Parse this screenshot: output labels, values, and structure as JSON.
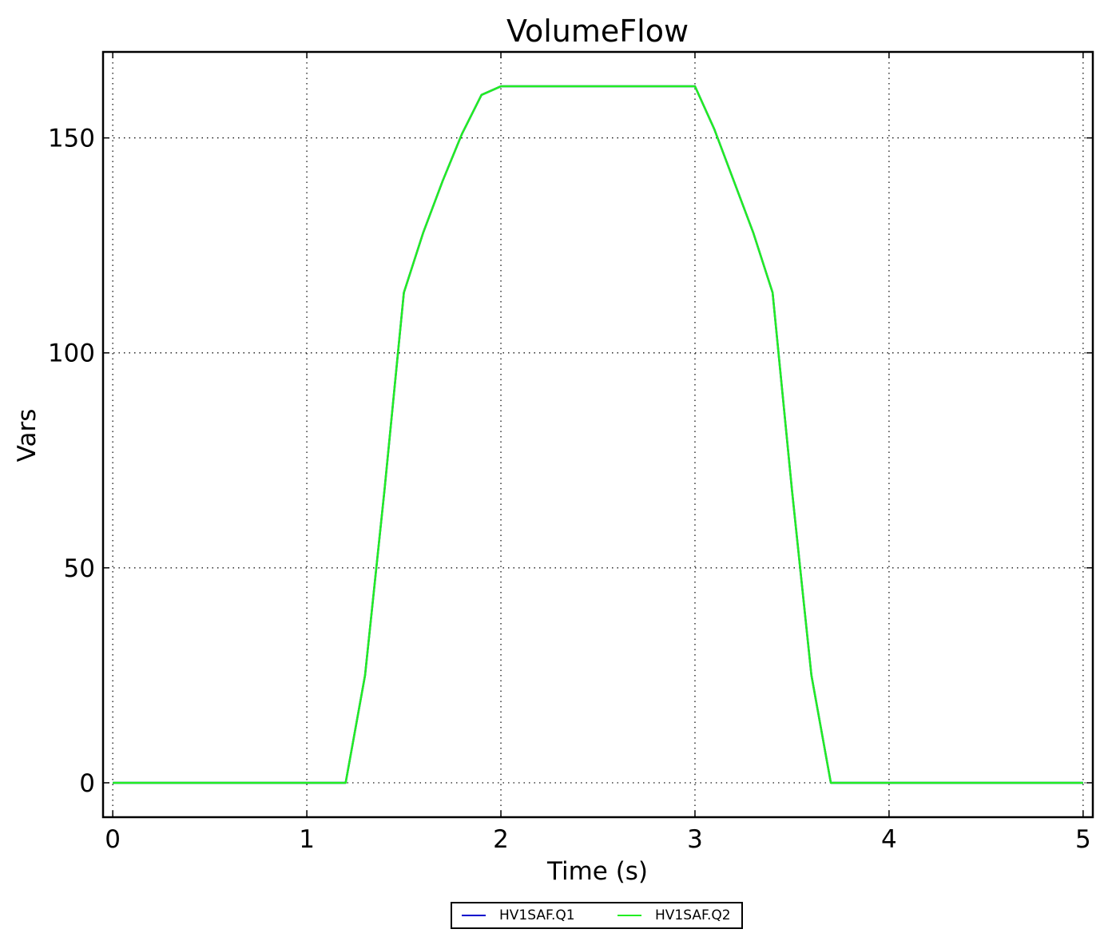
{
  "chart_data": {
    "type": "line",
    "title": "VolumeFlow",
    "xlabel": "Time (s)",
    "ylabel": "Vars",
    "xlim": [
      -0.05,
      5.05
    ],
    "ylim": [
      -8,
      170
    ],
    "xticks": [
      0,
      1,
      2,
      3,
      4,
      5
    ],
    "xtick_labels": [
      "0",
      "1",
      "2",
      "3",
      "4",
      "5"
    ],
    "yticks": [
      0,
      50,
      100,
      150
    ],
    "ytick_labels": [
      "0",
      "50",
      "100",
      "150"
    ],
    "grid": true,
    "legend_position": "bottom-center",
    "series": [
      {
        "name": "HV1SAF.Q1",
        "color": "#0000cc",
        "x": [
          0,
          1.2,
          1.3,
          1.4,
          1.5,
          1.6,
          1.7,
          1.8,
          1.9,
          2.0,
          3.0,
          3.1,
          3.2,
          3.3,
          3.4,
          3.5,
          3.6,
          3.7,
          3.8,
          5.0
        ],
        "y": [
          0,
          0,
          25,
          68,
          114,
          128,
          140,
          151,
          160,
          162,
          162,
          152,
          140,
          128,
          114,
          68,
          25,
          0,
          0,
          0
        ]
      },
      {
        "name": "HV1SAF.Q2",
        "color": "#22ee22",
        "x": [
          0,
          1.2,
          1.3,
          1.4,
          1.5,
          1.6,
          1.7,
          1.8,
          1.9,
          2.0,
          3.0,
          3.1,
          3.2,
          3.3,
          3.4,
          3.5,
          3.6,
          3.7,
          3.8,
          5.0
        ],
        "y": [
          0,
          0,
          25,
          68,
          114,
          128,
          140,
          151,
          160,
          162,
          162,
          152,
          140,
          128,
          114,
          68,
          25,
          0,
          0,
          0
        ]
      }
    ]
  }
}
